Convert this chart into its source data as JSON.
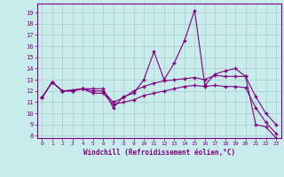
{
  "xlabel": "Windchill (Refroidissement éolien,°C)",
  "background_color": "#c8ecec",
  "line_color": "#800080",
  "grid_color": "#aacccc",
  "spine_color": "#800080",
  "xlim": [
    -0.5,
    23.5
  ],
  "ylim": [
    7.8,
    19.8
  ],
  "yticks": [
    8,
    9,
    10,
    11,
    12,
    13,
    14,
    15,
    16,
    17,
    18,
    19
  ],
  "xticks": [
    0,
    1,
    2,
    3,
    4,
    5,
    6,
    7,
    8,
    9,
    10,
    11,
    12,
    13,
    14,
    15,
    16,
    17,
    18,
    19,
    20,
    21,
    22,
    23
  ],
  "series1_x": [
    0,
    1,
    2,
    3,
    4,
    5,
    6,
    7,
    8,
    9,
    10,
    11,
    12,
    13,
    14,
    15,
    16,
    17,
    18,
    19,
    20,
    21,
    22,
    23
  ],
  "series1_y": [
    11.4,
    12.8,
    12.0,
    12.1,
    12.2,
    12.2,
    12.2,
    10.5,
    11.5,
    11.8,
    13.0,
    15.5,
    13.0,
    14.5,
    16.5,
    19.2,
    12.5,
    13.5,
    13.8,
    14.0,
    13.3,
    9.0,
    8.8,
    7.8
  ],
  "series2_x": [
    0,
    1,
    2,
    3,
    4,
    5,
    6,
    7,
    8,
    9,
    10,
    11,
    12,
    13,
    14,
    15,
    16,
    17,
    18,
    19,
    20,
    21,
    22,
    23
  ],
  "series2_y": [
    11.4,
    12.8,
    12.0,
    12.0,
    12.2,
    12.0,
    12.0,
    11.0,
    11.4,
    12.0,
    12.4,
    12.7,
    12.9,
    13.0,
    13.1,
    13.2,
    13.0,
    13.4,
    13.3,
    13.3,
    13.3,
    11.5,
    10.0,
    9.0
  ],
  "series3_x": [
    0,
    1,
    2,
    3,
    4,
    5,
    6,
    7,
    8,
    9,
    10,
    11,
    12,
    13,
    14,
    15,
    16,
    17,
    18,
    19,
    20,
    21,
    22,
    23
  ],
  "series3_y": [
    11.4,
    12.8,
    12.0,
    12.0,
    12.2,
    11.8,
    11.8,
    10.8,
    11.0,
    11.2,
    11.6,
    11.8,
    12.0,
    12.2,
    12.4,
    12.5,
    12.4,
    12.5,
    12.4,
    12.4,
    12.3,
    10.5,
    9.2,
    8.2
  ]
}
